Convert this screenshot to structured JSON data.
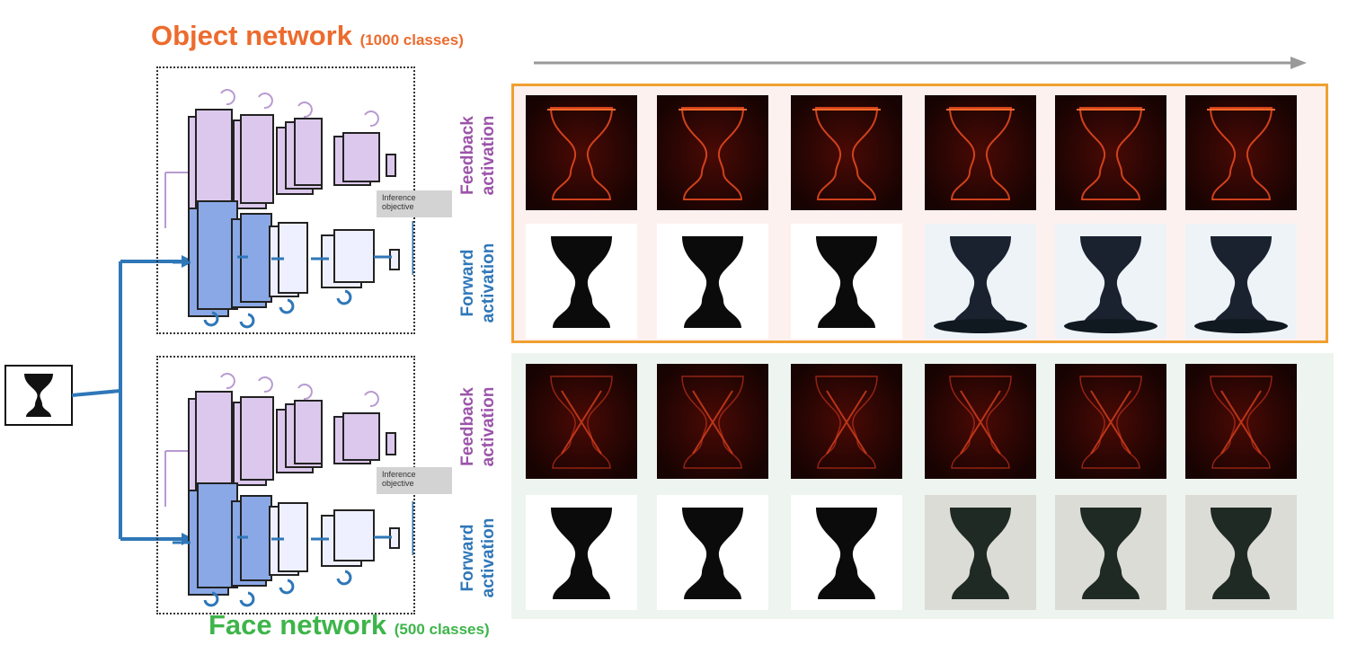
{
  "object_network": {
    "title": "Object network",
    "subtitle": "(1000 classes)",
    "accent_color": "#ec6b2d",
    "frame_color": "#f0a030",
    "inference_label_line1": "Inference",
    "inference_label_line2": "objective",
    "feedback_label_line1": "Feedback",
    "feedback_label_line2": "activation",
    "forward_label_line1": "Forward",
    "forward_label_line2": "activation"
  },
  "face_network": {
    "title": "Face network",
    "subtitle": "(500 classes)",
    "accent_color": "#3db54a",
    "inference_label_line1": "Inference",
    "inference_label_line2": "objective",
    "feedback_label_line1": "Feedback",
    "feedback_label_line2": "activation",
    "forward_label_line1": "Forward",
    "forward_label_line2": "activation"
  },
  "input": {
    "image": "rubin-vase-icon"
  },
  "time_arrow": {
    "icon": "arrow-right-icon"
  },
  "object_feedback_images": [
    "heatmap-vase-1",
    "heatmap-vase-2",
    "heatmap-vase-3",
    "heatmap-vase-4",
    "heatmap-vase-5",
    "heatmap-vase-6"
  ],
  "object_forward_images": [
    "vase-silhouette-1",
    "vase-silhouette-2",
    "vase-silhouette-3",
    "vase-photo-4",
    "vase-photo-5",
    "vase-photo-6"
  ],
  "face_feedback_images": [
    "heatmap-faces-1",
    "heatmap-faces-2",
    "heatmap-faces-3",
    "heatmap-faces-4",
    "heatmap-faces-5",
    "heatmap-faces-6"
  ],
  "face_forward_images": [
    "faces-silhouette-1",
    "faces-silhouette-2",
    "faces-silhouette-3",
    "faces-texture-4",
    "faces-texture-5",
    "faces-texture-6"
  ],
  "colors": {
    "feedback": "#9b54a9",
    "forward": "#2f77b8",
    "connector": "#2f77b8"
  }
}
